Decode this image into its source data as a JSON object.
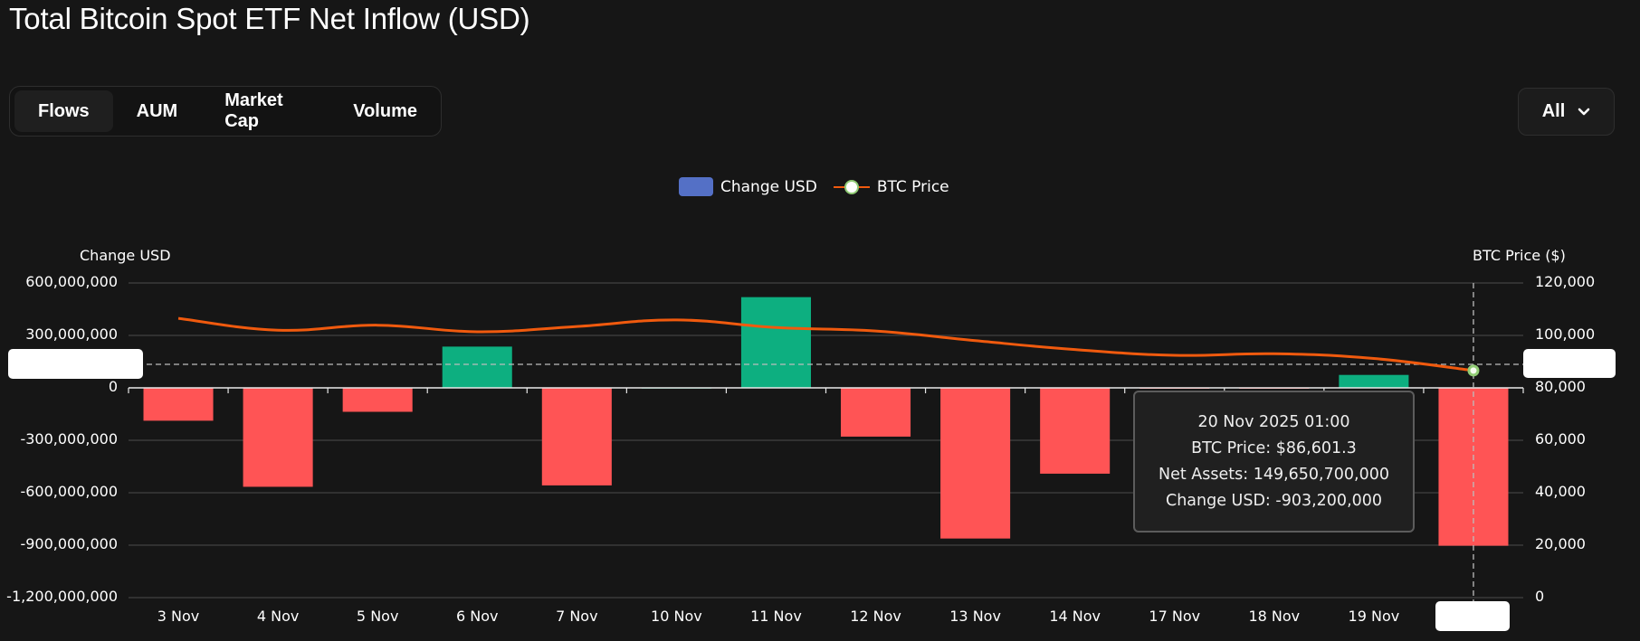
{
  "page": {
    "title": "Total Bitcoin Spot ETF Net Inflow (USD)"
  },
  "tabs": [
    {
      "label": "Flows",
      "active": true
    },
    {
      "label": "AUM",
      "active": false
    },
    {
      "label": "Market Cap",
      "active": false
    },
    {
      "label": "Volume",
      "active": false
    }
  ],
  "range_selector": {
    "label": "All",
    "icon": "chevron-down-icon"
  },
  "legend": {
    "bar_label": "Change USD",
    "line_label": "BTC Price"
  },
  "axes": {
    "left_title": "Change USD",
    "right_title": "BTC Price ($)",
    "left_ticks": [
      "600,000,000",
      "300,000,000",
      "0",
      "-300,000,000",
      "-600,000,000",
      "-900,000,000",
      "-1,200,000,000"
    ],
    "right_ticks": [
      "120,000",
      "100,000",
      "80,000",
      "60,000",
      "40,000",
      "20,000",
      "0"
    ]
  },
  "tooltip": {
    "date": "20 Nov 2025 01:00",
    "btc_price": "BTC Price: $86,601.3",
    "net_assets": "Net Assets: 149,650,700,000",
    "change_usd": "Change USD: -903,200,000"
  },
  "colors": {
    "positive": "#0daf80",
    "negative": "#ff5455",
    "line": "#f05a0e",
    "legend_bar": "#5470c6",
    "background": "#161616"
  },
  "chart_data": {
    "type": "bar",
    "title": "Total Bitcoin Spot ETF Net Inflow (USD)",
    "categories": [
      "3 Nov",
      "4 Nov",
      "5 Nov",
      "6 Nov",
      "7 Nov",
      "10 Nov",
      "11 Nov",
      "12 Nov",
      "13 Nov",
      "14 Nov",
      "17 Nov",
      "18 Nov",
      "19 Nov",
      "20 Nov"
    ],
    "series": [
      {
        "name": "Change USD",
        "type": "bar",
        "axis": "left",
        "values": [
          -188000000,
          -566000000,
          -137000000,
          236000000,
          -558000000,
          1000000,
          519000000,
          -279000000,
          -862000000,
          -491000000,
          -3000000,
          -2000000,
          74000000,
          -903200000
        ]
      },
      {
        "name": "BTC Price",
        "type": "line",
        "axis": "right",
        "values": [
          106500,
          102000,
          103900,
          101400,
          103400,
          105900,
          103000,
          101700,
          98000,
          94600,
          92400,
          93000,
          91200,
          86601.3
        ]
      }
    ],
    "ylabel": "Change USD",
    "y2label": "BTC Price ($)",
    "ylim": [
      -1200000000,
      600000000
    ],
    "y2lim": [
      0,
      120000
    ],
    "grid": true,
    "legend_position": "top-center",
    "hovered_category": "20 Nov"
  }
}
